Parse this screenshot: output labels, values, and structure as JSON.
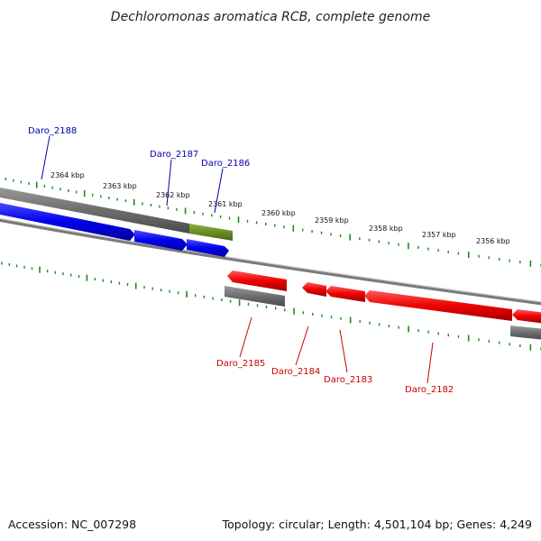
{
  "title": "Dechloromonas aromatica RCB, complete genome",
  "footer": {
    "accession": "Accession: NC_007298",
    "summary": "Topology: circular; Length: 4,501,104 bp; Genes: 4,249"
  },
  "colors": {
    "forward_gene": "#0000ee",
    "reverse_gene": "#ee0000",
    "pseudo_gene": "#6b8e23",
    "other_feature": "#707070",
    "tick": "#1a8a1a",
    "forward_label": "#0000aa",
    "reverse_label": "#cc0000"
  },
  "ticks": [
    {
      "label": "2364 kbp"
    },
    {
      "label": "2363 kbp"
    },
    {
      "label": "2362 kbp"
    },
    {
      "label": "2361 kbp"
    },
    {
      "label": "2360 kbp"
    },
    {
      "label": "2359 kbp"
    },
    {
      "label": "2358 kbp"
    },
    {
      "label": "2357 kbp"
    },
    {
      "label": "2356 kbp"
    }
  ],
  "genes_forward": [
    {
      "label": "Daro_2188"
    },
    {
      "label": "Daro_2187"
    },
    {
      "label": "Daro_2186"
    }
  ],
  "genes_reverse": [
    {
      "label": "Daro_2185"
    },
    {
      "label": "Daro_2184"
    },
    {
      "label": "Daro_2183"
    },
    {
      "label": "Daro_2182"
    }
  ]
}
